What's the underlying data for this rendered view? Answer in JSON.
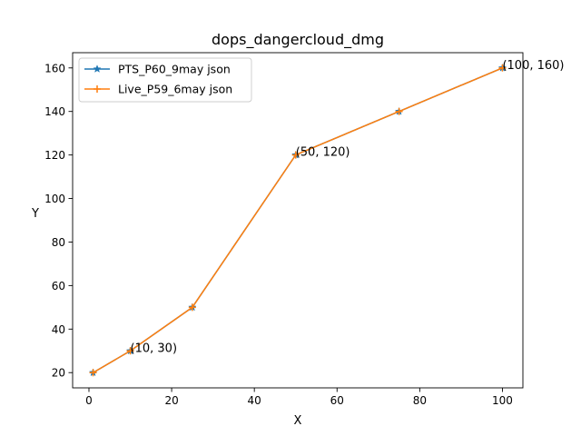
{
  "chart_data": {
    "type": "line",
    "title": "dops_dangercloud_dmg",
    "xlabel": "X",
    "ylabel": "Y",
    "xlim": [
      -3.95,
      104.95
    ],
    "ylim": [
      13,
      167
    ],
    "xticks": [
      0,
      20,
      40,
      60,
      80,
      100
    ],
    "yticks": [
      20,
      40,
      60,
      80,
      100,
      120,
      140,
      160
    ],
    "grid": false,
    "legend_position": "upper-left",
    "x": [
      1,
      10,
      25,
      50,
      75,
      100
    ],
    "series": [
      {
        "name": "PTS_P60_9may json",
        "values": [
          20,
          30,
          50,
          120,
          140,
          160
        ],
        "color": "#1f77b4",
        "marker": "star"
      },
      {
        "name": "Live_P59_6may json",
        "values": [
          20,
          30,
          50,
          120,
          140,
          160
        ],
        "color": "#ff7f0e",
        "marker": "plus"
      }
    ],
    "annotations": [
      {
        "text": "(10, 30)",
        "x": 10,
        "y": 30
      },
      {
        "text": "(50, 120)",
        "x": 50,
        "y": 120
      },
      {
        "text": "(100, 160)",
        "x": 100,
        "y": 160
      }
    ]
  }
}
